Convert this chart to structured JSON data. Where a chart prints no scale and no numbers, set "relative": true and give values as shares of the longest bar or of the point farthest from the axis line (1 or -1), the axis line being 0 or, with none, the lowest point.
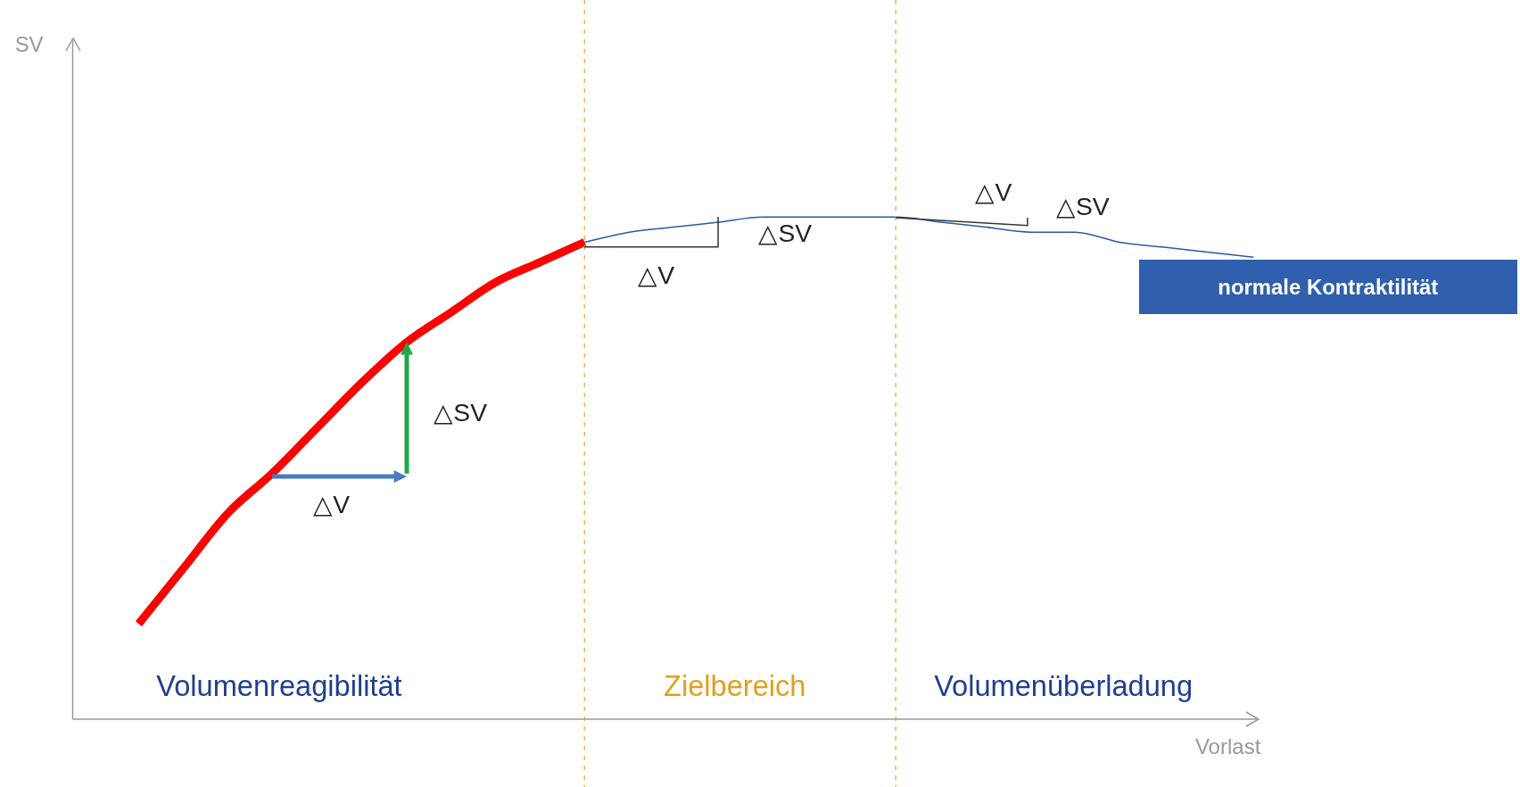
{
  "chart_data": {
    "type": "line",
    "relative": true,
    "marker": "none",
    "xlabel": "Vorlast",
    "categories": [
      null,
      null,
      null,
      null,
      null,
      null,
      null,
      null,
      null,
      null,
      null,
      null,
      null,
      null,
      null,
      null,
      null,
      null,
      null,
      null,
      null,
      null,
      null,
      null,
      null,
      null,
      null,
      null,
      null,
      null
    ],
    "series": [
      {
        "color": "#ff0000",
        "values": [
          0.19,
          0.3,
          0.41,
          0.49,
          0.58,
          0.67,
          0.75,
          0.81,
          0.87,
          0.91,
          0.95,
          null,
          null,
          null,
          null,
          null,
          null,
          null,
          null,
          null,
          null,
          null,
          null,
          null,
          null,
          null,
          null,
          null,
          null,
          null
        ]
      },
      {
        "color": "#2a5aa0",
        "values": [
          null,
          null,
          null,
          null,
          null,
          null,
          null,
          null,
          null,
          null,
          0.95,
          0.97,
          0.98,
          0.99,
          1.0,
          1.0,
          1.0,
          1.0,
          0.99,
          0.98,
          0.97,
          0.97,
          0.95,
          0.94,
          0.93,
          0.92,
          null,
          null,
          null,
          null
        ]
      }
    ],
    "annotations": [
      "Volumenreagibilität",
      "Zielbereich",
      "Volumenüberladung",
      "△V",
      "△SV",
      "△V",
      "△SV",
      "△V",
      "△SV",
      "normale Kontraktilität",
      "SV"
    ]
  }
}
